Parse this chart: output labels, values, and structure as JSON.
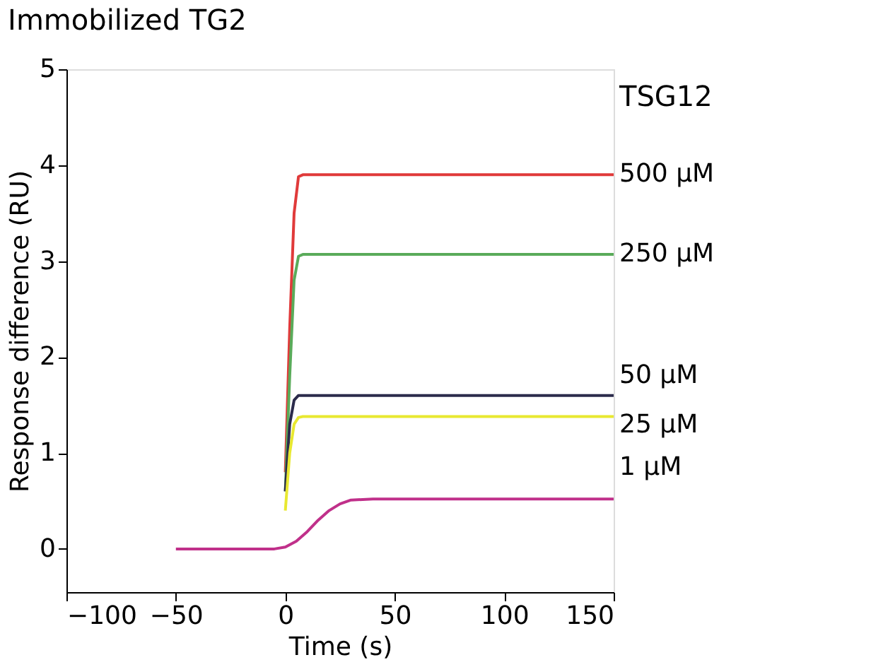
{
  "chart_data": {
    "type": "line",
    "title": "Immobilized TG2",
    "xlabel": "Time (s)",
    "ylabel": "Response difference (RU)",
    "legend_title": "TSG12",
    "xlim": [
      -100,
      150
    ],
    "xticks": [
      -100,
      -50,
      0,
      50,
      100,
      150
    ],
    "ylim": [
      -0.45,
      5
    ],
    "yticks": [
      0,
      1,
      2,
      3,
      4,
      5
    ],
    "grid": false,
    "legend": false,
    "series": [
      {
        "name": "500 µM",
        "color": "#e03a3a",
        "x": [
          0,
          2,
          4,
          6,
          8,
          150
        ],
        "values": [
          0.8,
          2.3,
          3.5,
          3.88,
          3.9,
          3.9
        ]
      },
      {
        "name": "250 µM",
        "color": "#5aab5a",
        "x": [
          0,
          2,
          4,
          6,
          8,
          150
        ],
        "values": [
          0.6,
          1.8,
          2.8,
          3.05,
          3.07,
          3.07
        ]
      },
      {
        "name": "50 µM",
        "color": "#2b2b4b",
        "x": [
          0,
          2,
          4,
          6,
          8,
          150
        ],
        "values": [
          0.6,
          1.3,
          1.55,
          1.6,
          1.6,
          1.6
        ]
      },
      {
        "name": "25 µM",
        "color": "#e8e830",
        "x": [
          0,
          2,
          4,
          6,
          8,
          150
        ],
        "values": [
          0.4,
          1.0,
          1.3,
          1.37,
          1.38,
          1.38
        ]
      },
      {
        "name": "1 µM",
        "color": "#c0308a",
        "x": [
          -50,
          -5,
          0,
          5,
          10,
          15,
          20,
          25,
          30,
          40,
          150
        ],
        "values": [
          0,
          0,
          0.02,
          0.08,
          0.18,
          0.3,
          0.4,
          0.47,
          0.51,
          0.52,
          0.52
        ]
      }
    ]
  }
}
